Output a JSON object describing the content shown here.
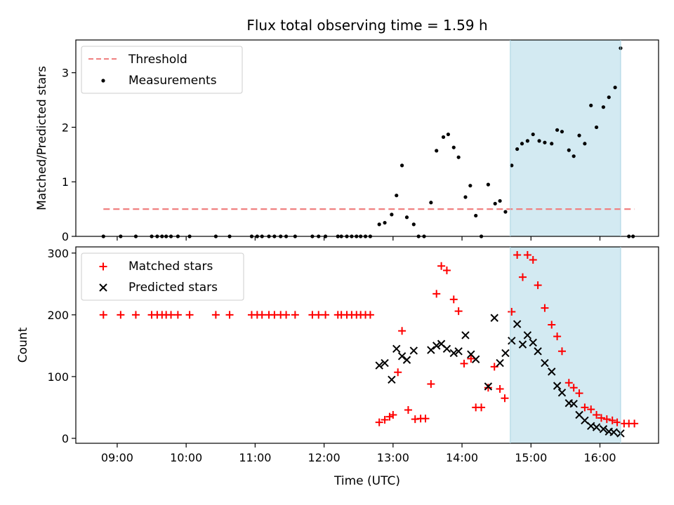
{
  "chart_data": [
    {
      "type": "scatter",
      "title": "Flux total observing time = 1.59 h",
      "xlabel": "",
      "ylabel": "Matched/Predicted stars",
      "x_unit": "hours UTC",
      "xlim": [
        8.4,
        16.85
      ],
      "ylim": [
        0,
        3.6
      ],
      "y_ticks": [
        0,
        1,
        2,
        3
      ],
      "y_tick_labels": [
        "0",
        "1",
        "2",
        "3"
      ],
      "shaded_span": {
        "x_start": 14.7,
        "x_end": 16.3,
        "color": "#d3eaf2"
      },
      "threshold": {
        "name": "Threshold",
        "value": 0.5,
        "x_start": 8.8,
        "x_end": 16.5,
        "color": "#f08080"
      },
      "legend": [
        "Threshold",
        "Measurements"
      ],
      "series": [
        {
          "name": "Measurements",
          "color": "#000000",
          "points": [
            [
              8.8,
              0
            ],
            [
              9.05,
              0
            ],
            [
              9.27,
              0
            ],
            [
              9.5,
              0
            ],
            [
              9.58,
              0
            ],
            [
              9.65,
              0
            ],
            [
              9.71,
              0
            ],
            [
              9.78,
              0
            ],
            [
              9.88,
              0
            ],
            [
              10.05,
              0
            ],
            [
              10.43,
              0
            ],
            [
              10.63,
              0
            ],
            [
              10.95,
              0
            ],
            [
              11.03,
              0
            ],
            [
              11.1,
              0
            ],
            [
              11.2,
              0
            ],
            [
              11.28,
              0
            ],
            [
              11.37,
              0
            ],
            [
              11.45,
              0
            ],
            [
              11.58,
              0
            ],
            [
              11.83,
              0
            ],
            [
              11.92,
              0
            ],
            [
              12.02,
              0
            ],
            [
              12.2,
              0
            ],
            [
              12.25,
              0
            ],
            [
              12.33,
              0
            ],
            [
              12.4,
              0
            ],
            [
              12.47,
              0
            ],
            [
              12.53,
              0
            ],
            [
              12.6,
              0
            ],
            [
              12.67,
              0
            ],
            [
              12.8,
              0.22
            ],
            [
              12.88,
              0.25
            ],
            [
              12.98,
              0.4
            ],
            [
              13.05,
              0.75
            ],
            [
              13.13,
              1.3
            ],
            [
              13.2,
              0.35
            ],
            [
              13.3,
              0.22
            ],
            [
              13.37,
              0
            ],
            [
              13.45,
              0
            ],
            [
              13.55,
              0.62
            ],
            [
              13.63,
              1.57
            ],
            [
              13.73,
              1.82
            ],
            [
              13.8,
              1.87
            ],
            [
              13.88,
              1.63
            ],
            [
              13.95,
              1.45
            ],
            [
              14.05,
              0.72
            ],
            [
              14.12,
              0.93
            ],
            [
              14.2,
              0.38
            ],
            [
              14.28,
              0
            ],
            [
              14.38,
              0.95
            ],
            [
              14.48,
              0.6
            ],
            [
              14.55,
              0.65
            ],
            [
              14.63,
              0.45
            ],
            [
              14.72,
              1.3
            ],
            [
              14.8,
              1.6
            ],
            [
              14.87,
              1.7
            ],
            [
              14.95,
              1.75
            ],
            [
              15.03,
              1.87
            ],
            [
              15.12,
              1.75
            ],
            [
              15.2,
              1.72
            ],
            [
              15.3,
              1.7
            ],
            [
              15.38,
              1.95
            ],
            [
              15.45,
              1.92
            ],
            [
              15.55,
              1.58
            ],
            [
              15.62,
              1.47
            ],
            [
              15.7,
              1.85
            ],
            [
              15.78,
              1.7
            ],
            [
              15.87,
              2.4
            ],
            [
              15.95,
              2.0
            ],
            [
              16.05,
              2.37
            ],
            [
              16.13,
              2.55
            ],
            [
              16.22,
              2.73
            ],
            [
              16.3,
              3.45
            ],
            [
              16.42,
              0
            ],
            [
              16.48,
              0
            ]
          ]
        }
      ]
    },
    {
      "type": "scatter",
      "title": "",
      "xlabel": "Time (UTC)",
      "ylabel": "Count",
      "x_unit": "hours UTC",
      "xlim": [
        8.4,
        16.85
      ],
      "ylim": [
        -8,
        310
      ],
      "y_ticks": [
        0,
        100,
        200,
        300
      ],
      "y_tick_labels": [
        "0",
        "100",
        "200",
        "300"
      ],
      "x_ticks": [
        9,
        10,
        11,
        12,
        13,
        14,
        15,
        16
      ],
      "x_tick_labels": [
        "09:00",
        "10:00",
        "11:00",
        "12:00",
        "13:00",
        "14:00",
        "15:00",
        "16:00"
      ],
      "shaded_span": {
        "x_start": 14.7,
        "x_end": 16.3,
        "color": "#d3eaf2"
      },
      "legend": [
        "Matched stars",
        "Predicted stars"
      ],
      "series": [
        {
          "name": "Matched stars",
          "marker": "plus",
          "color": "#ff0000",
          "points": [
            [
              8.8,
              200
            ],
            [
              9.05,
              200
            ],
            [
              9.27,
              200
            ],
            [
              9.5,
              200
            ],
            [
              9.58,
              200
            ],
            [
              9.65,
              200
            ],
            [
              9.71,
              200
            ],
            [
              9.78,
              200
            ],
            [
              9.88,
              200
            ],
            [
              10.05,
              200
            ],
            [
              10.43,
              200
            ],
            [
              10.63,
              200
            ],
            [
              10.95,
              200
            ],
            [
              11.03,
              200
            ],
            [
              11.1,
              200
            ],
            [
              11.2,
              200
            ],
            [
              11.28,
              200
            ],
            [
              11.37,
              200
            ],
            [
              11.45,
              200
            ],
            [
              11.58,
              200
            ],
            [
              11.83,
              200
            ],
            [
              11.92,
              200
            ],
            [
              12.02,
              200
            ],
            [
              12.2,
              200
            ],
            [
              12.25,
              200
            ],
            [
              12.33,
              200
            ],
            [
              12.4,
              200
            ],
            [
              12.47,
              200
            ],
            [
              12.53,
              200
            ],
            [
              12.6,
              200
            ],
            [
              12.67,
              200
            ],
            [
              12.8,
              26
            ],
            [
              12.88,
              30
            ],
            [
              12.95,
              35
            ],
            [
              13.0,
              38
            ],
            [
              13.07,
              107
            ],
            [
              13.13,
              174
            ],
            [
              13.22,
              46
            ],
            [
              13.32,
              31
            ],
            [
              13.4,
              32
            ],
            [
              13.47,
              32
            ],
            [
              13.55,
              88
            ],
            [
              13.63,
              234
            ],
            [
              13.7,
              279
            ],
            [
              13.78,
              272
            ],
            [
              13.88,
              225
            ],
            [
              13.95,
              206
            ],
            [
              14.03,
              121
            ],
            [
              14.13,
              129
            ],
            [
              14.2,
              50
            ],
            [
              14.28,
              50
            ],
            [
              14.38,
              82
            ],
            [
              14.47,
              116
            ],
            [
              14.55,
              80
            ],
            [
              14.62,
              65
            ],
            [
              14.72,
              205
            ],
            [
              14.8,
              297
            ],
            [
              14.88,
              261
            ],
            [
              14.95,
              297
            ],
            [
              15.03,
              289
            ],
            [
              15.1,
              248
            ],
            [
              15.2,
              211
            ],
            [
              15.3,
              184
            ],
            [
              15.38,
              165
            ],
            [
              15.45,
              141
            ],
            [
              15.55,
              90
            ],
            [
              15.62,
              82
            ],
            [
              15.7,
              73
            ],
            [
              15.78,
              50
            ],
            [
              15.87,
              47
            ],
            [
              15.95,
              38
            ],
            [
              16.02,
              33
            ],
            [
              16.1,
              31
            ],
            [
              16.18,
              29
            ],
            [
              16.25,
              26
            ],
            [
              16.35,
              24
            ],
            [
              16.42,
              24
            ],
            [
              16.5,
              24
            ]
          ]
        },
        {
          "name": "Predicted stars",
          "marker": "x",
          "color": "#000000",
          "points": [
            [
              12.8,
              118
            ],
            [
              12.88,
              122
            ],
            [
              12.98,
              95
            ],
            [
              13.05,
              145
            ],
            [
              13.13,
              133
            ],
            [
              13.2,
              127
            ],
            [
              13.3,
              142
            ],
            [
              13.55,
              143
            ],
            [
              13.63,
              150
            ],
            [
              13.7,
              153
            ],
            [
              13.78,
              145
            ],
            [
              13.88,
              138
            ],
            [
              13.95,
              141
            ],
            [
              14.05,
              167
            ],
            [
              14.13,
              136
            ],
            [
              14.2,
              128
            ],
            [
              14.38,
              84
            ],
            [
              14.47,
              195
            ],
            [
              14.55,
              122
            ],
            [
              14.63,
              138
            ],
            [
              14.72,
              158
            ],
            [
              14.8,
              185
            ],
            [
              14.88,
              152
            ],
            [
              14.95,
              167
            ],
            [
              15.03,
              155
            ],
            [
              15.1,
              141
            ],
            [
              15.2,
              122
            ],
            [
              15.3,
              108
            ],
            [
              15.38,
              85
            ],
            [
              15.45,
              74
            ],
            [
              15.55,
              57
            ],
            [
              15.62,
              56
            ],
            [
              15.7,
              38
            ],
            [
              15.78,
              29
            ],
            [
              15.87,
              20
            ],
            [
              15.95,
              18
            ],
            [
              16.05,
              15
            ],
            [
              16.13,
              11
            ],
            [
              16.2,
              10
            ],
            [
              16.3,
              8
            ]
          ]
        }
      ]
    }
  ]
}
